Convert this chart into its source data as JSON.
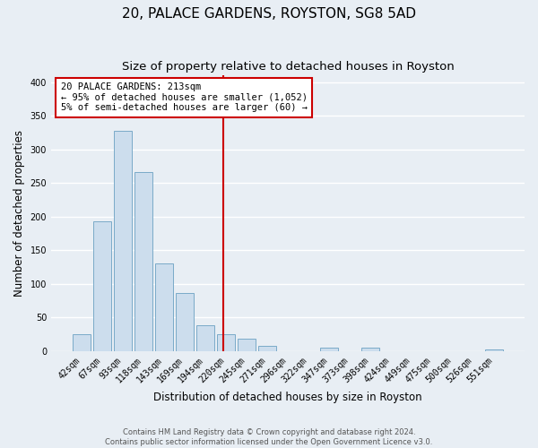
{
  "title": "20, PALACE GARDENS, ROYSTON, SG8 5AD",
  "subtitle": "Size of property relative to detached houses in Royston",
  "xlabel": "Distribution of detached houses by size in Royston",
  "ylabel": "Number of detached properties",
  "bar_labels": [
    "42sqm",
    "67sqm",
    "93sqm",
    "118sqm",
    "143sqm",
    "169sqm",
    "194sqm",
    "220sqm",
    "245sqm",
    "271sqm",
    "296sqm",
    "322sqm",
    "347sqm",
    "373sqm",
    "398sqm",
    "424sqm",
    "449sqm",
    "475sqm",
    "500sqm",
    "526sqm",
    "551sqm"
  ],
  "bar_values": [
    25,
    193,
    328,
    266,
    130,
    87,
    39,
    25,
    18,
    8,
    0,
    0,
    5,
    0,
    5,
    0,
    0,
    0,
    0,
    0,
    3
  ],
  "bar_color": "#ccdded",
  "bar_edge_color": "#7aaac8",
  "vline_color": "#cc0000",
  "vline_x": 6.88,
  "ylim": [
    0,
    410
  ],
  "yticks": [
    0,
    50,
    100,
    150,
    200,
    250,
    300,
    350,
    400
  ],
  "annotation_text": "20 PALACE GARDENS: 213sqm\n← 95% of detached houses are smaller (1,052)\n5% of semi-detached houses are larger (60) →",
  "annotation_box_color": "#cc0000",
  "footer_line1": "Contains HM Land Registry data © Crown copyright and database right 2024.",
  "footer_line2": "Contains public sector information licensed under the Open Government Licence v3.0.",
  "bg_color": "#e8eef4",
  "grid_color": "#ffffff",
  "title_fontsize": 11,
  "subtitle_fontsize": 9.5,
  "ylabel_fontsize": 8.5,
  "xlabel_fontsize": 8.5,
  "tick_fontsize": 7,
  "annotation_fontsize": 7.5,
  "footer_fontsize": 6
}
